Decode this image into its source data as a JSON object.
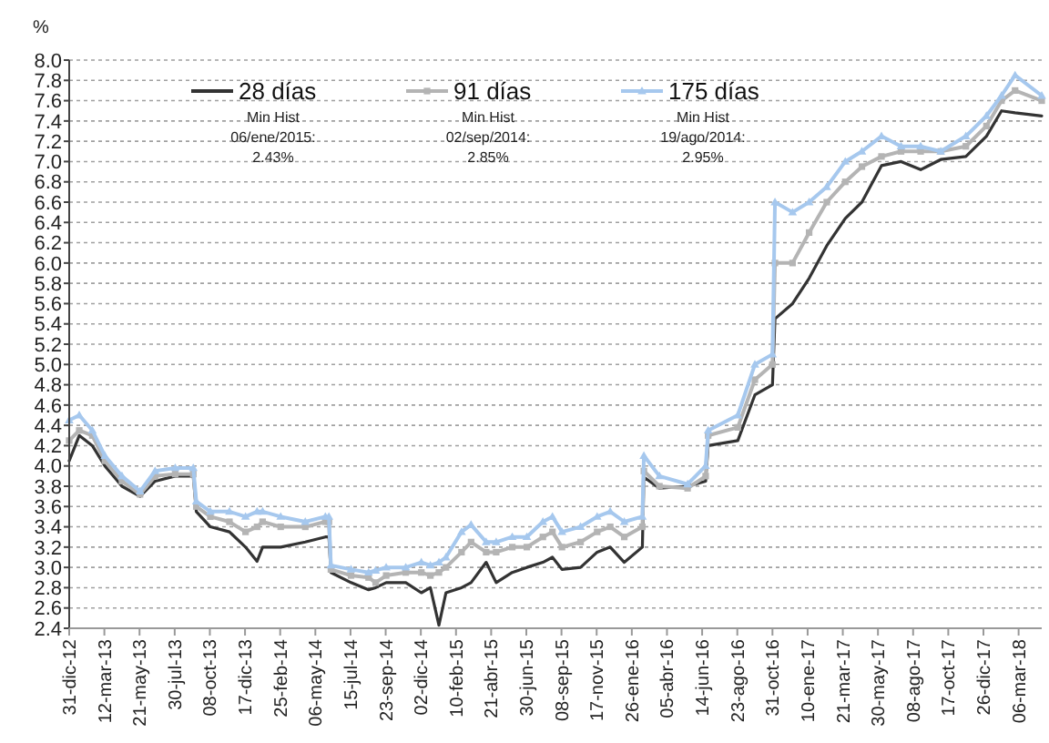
{
  "chart_data": {
    "type": "line",
    "ylabel": "%",
    "x": [
      "2012-12-31",
      "2013-01-20",
      "2013-02-15",
      "2013-03-12",
      "2013-04-15",
      "2013-05-21",
      "2013-06-20",
      "2013-07-30",
      "2013-09-04",
      "2013-09-10",
      "2013-10-08",
      "2013-11-15",
      "2013-12-17",
      "2014-01-09",
      "2014-01-20",
      "2014-02-25",
      "2014-04-15",
      "2014-05-25",
      "2014-06-01",
      "2014-06-05",
      "2014-07-15",
      "2014-08-19",
      "2014-09-02",
      "2014-09-23",
      "2014-11-01",
      "2014-12-02",
      "2014-12-20",
      "2015-01-06",
      "2015-01-20",
      "2015-02-20",
      "2015-03-11",
      "2015-04-10",
      "2015-04-30",
      "2015-06-01",
      "2015-06-30",
      "2015-08-01",
      "2015-08-20",
      "2015-09-08",
      "2015-10-15",
      "2015-11-17",
      "2015-12-13",
      "2016-01-10",
      "2016-02-15",
      "2016-02-18",
      "2016-03-20",
      "2016-05-15",
      "2016-06-20",
      "2016-06-25",
      "2016-08-23",
      "2016-09-26",
      "2016-10-31",
      "2016-11-05",
      "2016-12-10",
      "2017-01-12",
      "2017-02-16",
      "2017-03-25",
      "2017-04-27",
      "2017-06-05",
      "2017-07-14",
      "2017-08-22",
      "2017-10-01",
      "2017-11-20",
      "2017-12-31",
      "2018-01-30",
      "2018-02-26",
      "2018-04-20"
    ],
    "series": [
      {
        "name": "28 días",
        "color": "#333333",
        "marker": "none",
        "values": [
          4.05,
          4.3,
          4.2,
          4.0,
          3.8,
          3.7,
          3.85,
          3.9,
          3.9,
          3.55,
          3.4,
          3.35,
          3.2,
          3.06,
          3.2,
          3.2,
          3.25,
          3.3,
          3.3,
          2.95,
          2.85,
          2.78,
          2.8,
          2.85,
          2.85,
          2.75,
          2.8,
          2.43,
          2.75,
          2.8,
          2.85,
          3.05,
          2.85,
          2.95,
          3.0,
          3.05,
          3.1,
          2.98,
          3.0,
          3.15,
          3.2,
          3.05,
          3.2,
          3.89,
          3.78,
          3.8,
          3.85,
          4.2,
          4.25,
          4.7,
          4.8,
          5.45,
          5.6,
          5.85,
          6.17,
          6.44,
          6.6,
          6.96,
          7.0,
          6.92,
          7.02,
          7.05,
          7.25,
          7.5,
          7.48,
          7.45
        ]
      },
      {
        "name": "91 días",
        "color": "#b4b4b4",
        "marker": "square",
        "values": [
          4.25,
          4.35,
          4.3,
          4.05,
          3.85,
          3.72,
          3.9,
          3.92,
          3.92,
          3.6,
          3.5,
          3.45,
          3.35,
          3.4,
          3.45,
          3.4,
          3.4,
          3.45,
          3.45,
          2.98,
          2.92,
          2.9,
          2.85,
          2.92,
          2.95,
          2.95,
          2.92,
          2.95,
          3.0,
          3.15,
          3.25,
          3.15,
          3.15,
          3.2,
          3.2,
          3.3,
          3.35,
          3.2,
          3.25,
          3.35,
          3.4,
          3.3,
          3.4,
          3.95,
          3.8,
          3.78,
          3.9,
          4.3,
          4.38,
          4.85,
          5.0,
          6.0,
          6.0,
          6.3,
          6.6,
          6.8,
          6.95,
          7.05,
          7.1,
          7.1,
          7.1,
          7.15,
          7.35,
          7.6,
          7.7,
          7.6
        ]
      },
      {
        "name": "175 días",
        "color": "#a6c8ee",
        "marker": "triangle",
        "values": [
          4.45,
          4.5,
          4.35,
          4.1,
          3.9,
          3.75,
          3.95,
          3.98,
          3.98,
          3.65,
          3.55,
          3.55,
          3.5,
          3.55,
          3.55,
          3.5,
          3.45,
          3.5,
          3.5,
          3.02,
          2.98,
          2.95,
          2.97,
          3.0,
          3.0,
          3.05,
          3.02,
          3.05,
          3.1,
          3.35,
          3.42,
          3.25,
          3.25,
          3.3,
          3.3,
          3.45,
          3.5,
          3.35,
          3.4,
          3.5,
          3.55,
          3.45,
          3.5,
          4.1,
          3.9,
          3.82,
          4.0,
          4.35,
          4.5,
          5.0,
          5.1,
          6.6,
          6.5,
          6.6,
          6.75,
          7.0,
          7.1,
          7.25,
          7.15,
          7.15,
          7.1,
          7.25,
          7.45,
          7.65,
          7.85,
          7.65
        ]
      }
    ],
    "xlim": [
      "2012-12-31",
      "2018-04-20"
    ],
    "xticks": [
      {
        "value": "2012-12-31",
        "label": "31-dic-12"
      },
      {
        "value": "2013-03-11",
        "label": "12-mar-13"
      },
      {
        "value": "2013-05-20",
        "label": "21-may-13"
      },
      {
        "value": "2013-07-29",
        "label": "30-jul-13"
      },
      {
        "value": "2013-10-07",
        "label": "08-oct-13"
      },
      {
        "value": "2013-12-16",
        "label": "17-dic-13"
      },
      {
        "value": "2014-02-24",
        "label": "25-feb-14"
      },
      {
        "value": "2014-05-05",
        "label": "06-may-14"
      },
      {
        "value": "2014-07-14",
        "label": "15-jul-14"
      },
      {
        "value": "2014-09-22",
        "label": "23-sep-14"
      },
      {
        "value": "2014-12-01",
        "label": "02-dic-14"
      },
      {
        "value": "2015-02-09",
        "label": "10-feb-15"
      },
      {
        "value": "2015-04-20",
        "label": "21-abr-15"
      },
      {
        "value": "2015-06-29",
        "label": "30-jun-15"
      },
      {
        "value": "2015-09-07",
        "label": "08-sep-15"
      },
      {
        "value": "2015-11-16",
        "label": "17-nov-15"
      },
      {
        "value": "2016-01-25",
        "label": "26-ene-16"
      },
      {
        "value": "2016-04-04",
        "label": "05-abr-16"
      },
      {
        "value": "2016-06-13",
        "label": "14-jun-16"
      },
      {
        "value": "2016-08-22",
        "label": "23-ago-16"
      },
      {
        "value": "2016-10-31",
        "label": "31-oct-16"
      },
      {
        "value": "2017-01-09",
        "label": "10-ene-17"
      },
      {
        "value": "2017-03-20",
        "label": "21-mar-17"
      },
      {
        "value": "2017-05-29",
        "label": "30-may-17"
      },
      {
        "value": "2017-08-07",
        "label": "08-ago-17"
      },
      {
        "value": "2017-10-16",
        "label": "17-oct-17"
      },
      {
        "value": "2017-12-25",
        "label": "26-dic-17"
      },
      {
        "value": "2018-03-05",
        "label": "06-mar-18"
      }
    ],
    "ylim": [
      2.4,
      8.0
    ],
    "yticks": [
      {
        "value": 2.4,
        "label": "2.4"
      },
      {
        "value": 2.6,
        "label": "2.6"
      },
      {
        "value": 2.8,
        "label": "2.8"
      },
      {
        "value": 3,
        "label": "3.0"
      },
      {
        "value": 3.2,
        "label": "3.2"
      },
      {
        "value": 3.4,
        "label": "3.4"
      },
      {
        "value": 3.6,
        "label": "3.6"
      },
      {
        "value": 3.8,
        "label": "3.8"
      },
      {
        "value": 4,
        "label": "4.0"
      },
      {
        "value": 4.2,
        "label": "4.2"
      },
      {
        "value": 4.4,
        "label": "4.4"
      },
      {
        "value": 4.6,
        "label": "4.6"
      },
      {
        "value": 4.8,
        "label": "4.8"
      },
      {
        "value": 5,
        "label": "5.0"
      },
      {
        "value": 5.2,
        "label": "5.2"
      },
      {
        "value": 5.4,
        "label": "5.4"
      },
      {
        "value": 5.6,
        "label": "5.6"
      },
      {
        "value": 5.8,
        "label": "5.8"
      },
      {
        "value": 6,
        "label": "6.0"
      },
      {
        "value": 6.2,
        "label": "6.2"
      },
      {
        "value": 6.4,
        "label": "6.4"
      },
      {
        "value": 6.6,
        "label": "6.6"
      },
      {
        "value": 6.8,
        "label": "6.8"
      },
      {
        "value": 7,
        "label": "7.0"
      },
      {
        "value": 7.2,
        "label": "7.2"
      },
      {
        "value": 7.4,
        "label": "7.4"
      },
      {
        "value": 7.6,
        "label": "7.6"
      },
      {
        "value": 7.8,
        "label": "7.8"
      },
      {
        "value": 8,
        "label": "8.0"
      }
    ],
    "grid": "y",
    "legend": "top",
    "line_style": "solid",
    "annotations": [
      "Min Hist\n06/ene/2015:\n2.43%",
      "Min Hist\n02/sep/2014:\n2.85%",
      "Min Hist\n19/ago/2014:\n2.95%"
    ]
  }
}
